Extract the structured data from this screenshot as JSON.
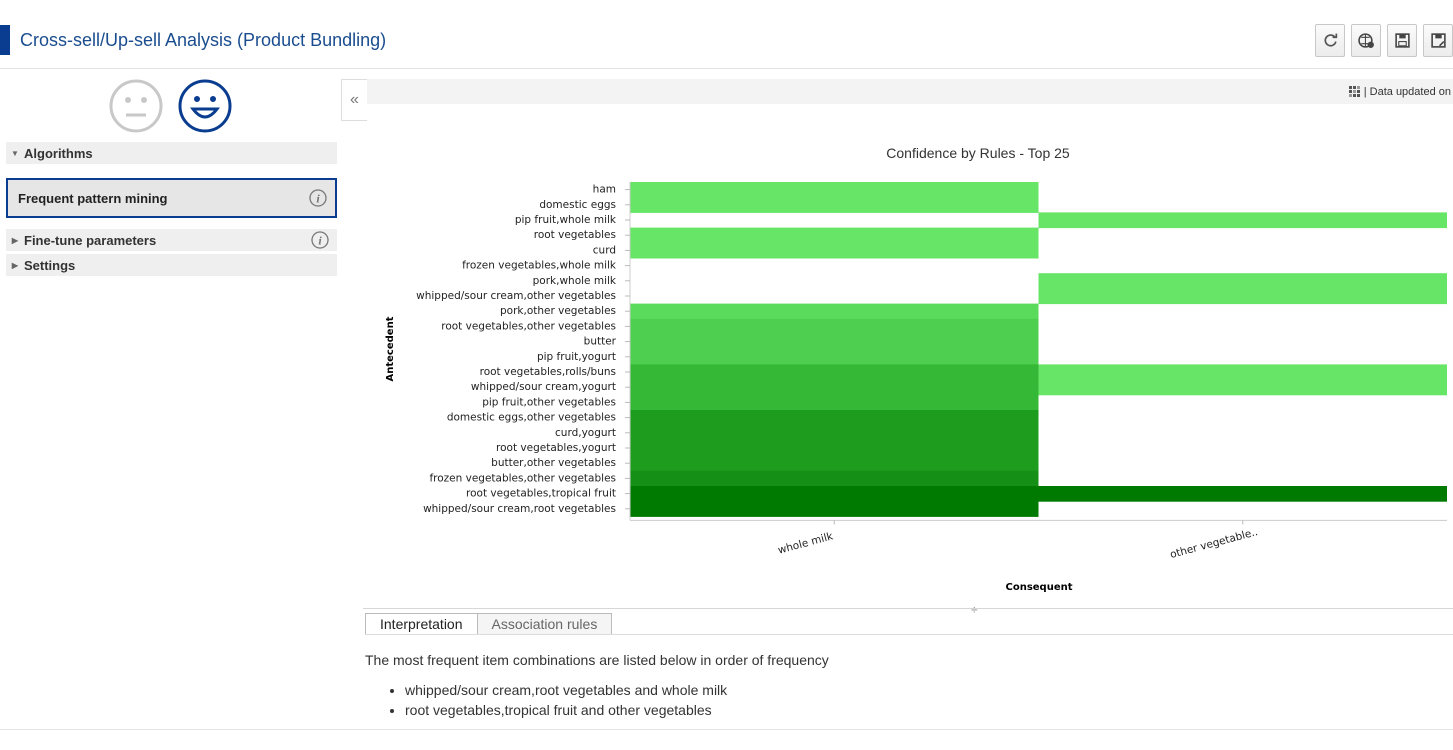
{
  "app": {
    "title": "Cross-sell/Up-sell Analysis (Product Bundling)"
  },
  "toolbar": {
    "buttons": [
      {
        "name": "refresh-icon"
      },
      {
        "name": "globe-settings-icon"
      },
      {
        "name": "save-icon"
      },
      {
        "name": "save-as-icon"
      }
    ]
  },
  "sidebar": {
    "faces": [
      {
        "name": "neutral-face-icon"
      },
      {
        "name": "happy-face-icon",
        "selected": true
      }
    ],
    "algorithms_label": "Algorithms",
    "algorithm_selected": "Frequent pattern mining",
    "finetune_label": "Fine-tune parameters",
    "settings_label": "Settings"
  },
  "status": {
    "text": "|  Data updated on"
  },
  "chart_data": {
    "type": "heatmap",
    "title": "Confidence by Rules - Top 25",
    "xlabel": "Consequent",
    "ylabel": "Antecedent",
    "x_categories": [
      "whole milk",
      "other vegetable.."
    ],
    "y_categories": [
      "ham",
      "domestic eggs",
      "pip fruit,whole milk",
      "root vegetables",
      "curd",
      "frozen vegetables,whole milk",
      "pork,whole milk",
      "whipped/sour cream,other vegetables",
      "pork,other vegetables",
      "root vegetables,other vegetables",
      "butter",
      "pip fruit,yogurt",
      "root vegetables,rolls/buns",
      "whipped/sour cream,yogurt",
      "pip fruit,other vegetables",
      "domestic eggs,other vegetables",
      "curd,yogurt",
      "root vegetables,yogurt",
      "butter,other vegetables",
      "frozen vegetables,other vegetables",
      "root vegetables,tropical fruit",
      "whipped/sour cream,root vegetables"
    ],
    "cells": [
      {
        "y": "ham",
        "x": "whole milk",
        "color": "#66e566"
      },
      {
        "y": "domestic eggs",
        "x": "whole milk",
        "color": "#66e566"
      },
      {
        "y": "pip fruit,whole milk",
        "x": "other vegetable..",
        "color": "#66e566"
      },
      {
        "y": "root vegetables",
        "x": "whole milk",
        "color": "#66e566"
      },
      {
        "y": "curd",
        "x": "whole milk",
        "color": "#66e566"
      },
      {
        "y": "pork,whole milk",
        "x": "other vegetable..",
        "color": "#66e566"
      },
      {
        "y": "whipped/sour cream,other vegetables",
        "x": "other vegetable..",
        "color": "#66e566"
      },
      {
        "y": "pork,other vegetables",
        "x": "whole milk",
        "color": "#5bdb5b"
      },
      {
        "y": "root vegetables,other vegetables",
        "x": "whole milk",
        "color": "#4fcf4f"
      },
      {
        "y": "butter",
        "x": "whole milk",
        "color": "#4fcf4f"
      },
      {
        "y": "pip fruit,yogurt",
        "x": "whole milk",
        "color": "#4fcf4f"
      },
      {
        "y": "root vegetables,rolls/buns",
        "x": "whole milk",
        "color": "#35b835"
      },
      {
        "y": "root vegetables,rolls/buns",
        "x": "other vegetable..",
        "color": "#66e566"
      },
      {
        "y": "whipped/sour cream,yogurt",
        "x": "whole milk",
        "color": "#35b835"
      },
      {
        "y": "whipped/sour cream,yogurt",
        "x": "other vegetable..",
        "color": "#66e566"
      },
      {
        "y": "pip fruit,other vegetables",
        "x": "whole milk",
        "color": "#35b835"
      },
      {
        "y": "domestic eggs,other vegetables",
        "x": "whole milk",
        "color": "#1e9c1e"
      },
      {
        "y": "curd,yogurt",
        "x": "whole milk",
        "color": "#1e9c1e"
      },
      {
        "y": "root vegetables,yogurt",
        "x": "whole milk",
        "color": "#1e9c1e"
      },
      {
        "y": "butter,other vegetables",
        "x": "whole milk",
        "color": "#1e9c1e"
      },
      {
        "y": "frozen vegetables,other vegetables",
        "x": "whole milk",
        "color": "#168f16"
      },
      {
        "y": "root vegetables,tropical fruit",
        "x": "whole milk",
        "color": "#007a00"
      },
      {
        "y": "root vegetables,tropical fruit",
        "x": "other vegetable..",
        "color": "#007a00"
      },
      {
        "y": "whipped/sour cream,root vegetables",
        "x": "whole milk",
        "color": "#007a00"
      }
    ]
  },
  "tabs": {
    "interpretation": "Interpretation",
    "association_rules": "Association rules"
  },
  "interpretation": {
    "intro": "The most frequent item combinations are listed below in order of frequency",
    "items": [
      "whipped/sour cream,root vegetables and whole milk",
      "root vegetables,tropical fruit and other vegetables"
    ]
  }
}
